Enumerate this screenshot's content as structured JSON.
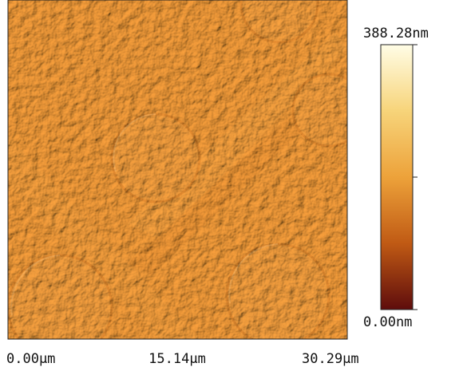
{
  "image": {
    "x_axis_labels": [
      "0.00µm",
      "15.14µm",
      "30.29µm"
    ]
  },
  "colorbar": {
    "max_label": "388.28nm",
    "min_label": "0.00nm"
  }
}
